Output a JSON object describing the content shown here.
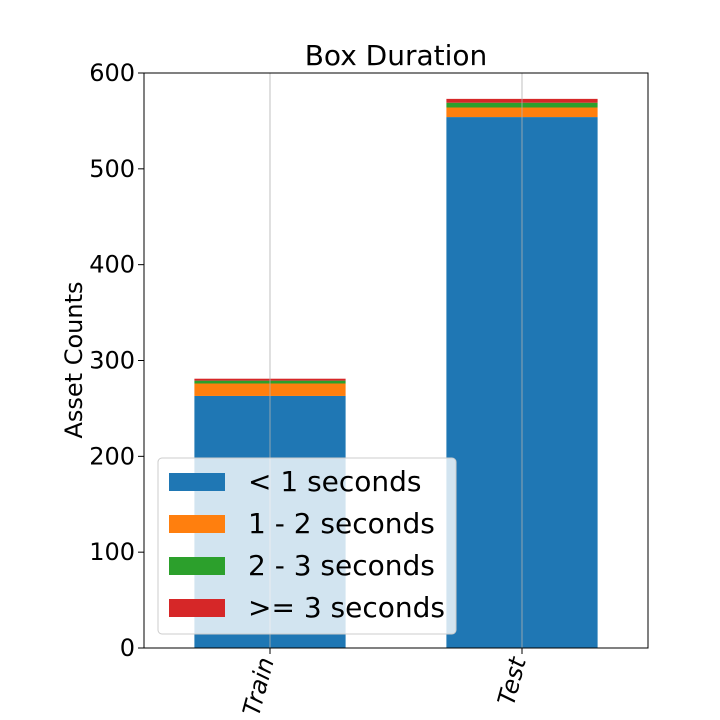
{
  "chart_data": {
    "type": "bar",
    "stacked": true,
    "title": "Box Duration",
    "xlabel": "",
    "ylabel": "Asset Counts",
    "categories": [
      "Train",
      "Test"
    ],
    "series": [
      {
        "name": "< 1 seconds",
        "color": "#1f77b4",
        "values": [
          263,
          554
        ]
      },
      {
        "name": "1 - 2 seconds",
        "color": "#ff7f0e",
        "values": [
          13,
          10
        ]
      },
      {
        "name": "2 - 3 seconds",
        "color": "#2ca02c",
        "values": [
          3,
          5
        ]
      },
      {
        "name": ">= 3 seconds",
        "color": "#d62728",
        "values": [
          2,
          4
        ]
      }
    ],
    "ylim": [
      0,
      600
    ],
    "yticks": [
      0,
      100,
      200,
      300,
      400,
      500,
      600
    ],
    "grid": "vertical",
    "legend_position": "lower-left"
  }
}
